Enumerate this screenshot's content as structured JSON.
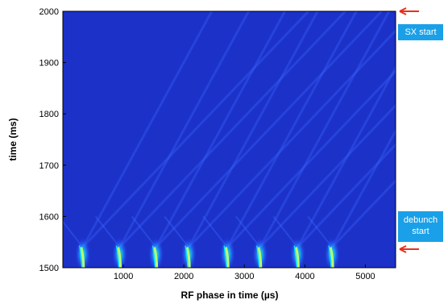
{
  "chart_data": {
    "type": "heatmap",
    "xlabel": "RF phase in time (µs)",
    "ylabel": "time (ms)",
    "xlim": [
      0,
      5500
    ],
    "ylim": [
      1500,
      2000
    ],
    "x_ticks": [
      1000,
      2000,
      3000,
      4000,
      5000
    ],
    "y_ticks": [
      1500,
      1600,
      1700,
      1800,
      1900,
      2000
    ],
    "colors": {
      "background": "#1c31c8",
      "stripe": "#3a68ff",
      "hot": "#b8ff70",
      "cyan": "#10e0ff"
    },
    "bunch_x": [
      330,
      940,
      1540,
      2080,
      2720,
      3260,
      3880,
      4450
    ],
    "bunch_time_range": [
      1500,
      1540
    ],
    "annotations": [
      {
        "label": "SX start",
        "time": 2000
      },
      {
        "label_lines": [
          "debunch",
          "start"
        ],
        "time": 1530
      }
    ]
  }
}
